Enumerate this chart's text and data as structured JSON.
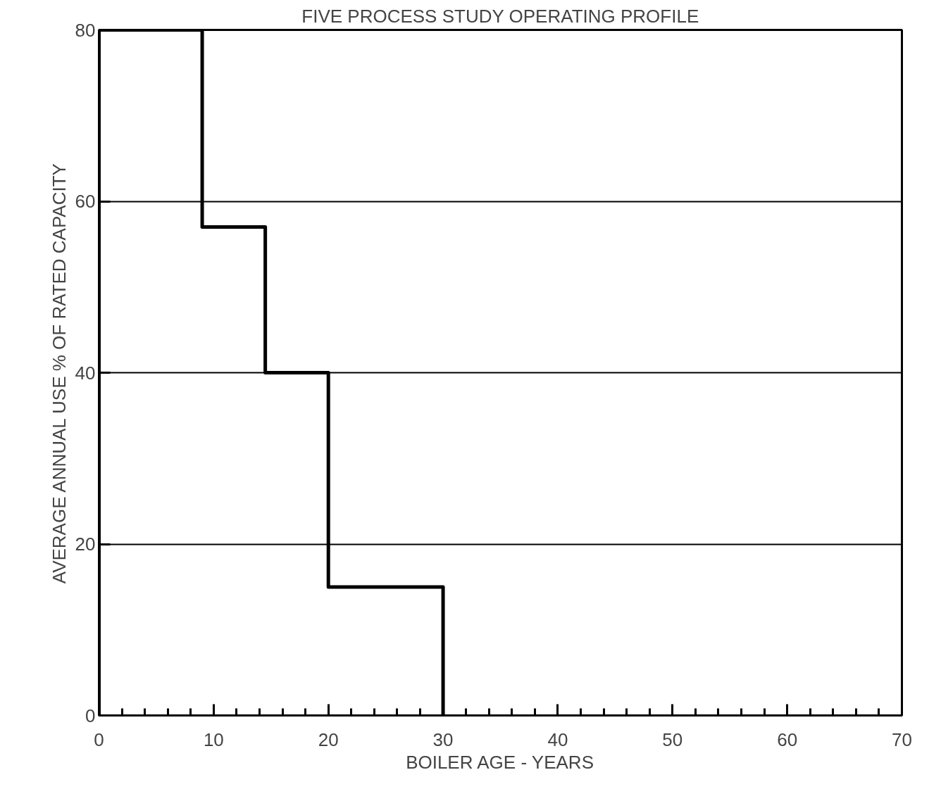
{
  "chart_data": {
    "type": "step",
    "title": "FIVE PROCESS STUDY OPERATING PROFILE",
    "xlabel": "BOILER AGE - YEARS",
    "ylabel": "AVERAGE ANNUAL USE % OF RATED CAPACITY",
    "x": [
      0,
      0,
      9,
      14.5,
      20,
      30
    ],
    "series": [
      {
        "color": "#000000",
        "values": [
          0,
          80,
          57,
          40,
          15,
          0
        ]
      }
    ],
    "xlim": [
      0,
      70
    ],
    "ylim": [
      0,
      80
    ],
    "xticks": [
      0,
      {
        "value": 2,
        "label": null
      },
      {
        "value": 4,
        "label": null
      },
      {
        "value": 6,
        "label": null
      },
      {
        "value": 8,
        "label": null
      },
      10,
      {
        "value": 12,
        "label": null
      },
      {
        "value": 14,
        "label": null
      },
      {
        "value": 16,
        "label": null
      },
      {
        "value": 18,
        "label": null
      },
      20,
      {
        "value": 22,
        "label": null
      },
      {
        "value": 24,
        "label": null
      },
      {
        "value": 26,
        "label": null
      },
      {
        "value": 28,
        "label": null
      },
      30,
      {
        "value": 32,
        "label": null
      },
      {
        "value": 34,
        "label": null
      },
      {
        "value": 36,
        "label": null
      },
      {
        "value": 38,
        "label": null
      },
      40,
      {
        "value": 42,
        "label": null
      },
      {
        "value": 44,
        "label": null
      },
      {
        "value": 46,
        "label": null
      },
      {
        "value": 48,
        "label": null
      },
      50,
      {
        "value": 52,
        "label": null
      },
      {
        "value": 54,
        "label": null
      },
      {
        "value": 56,
        "label": null
      },
      {
        "value": 58,
        "label": null
      },
      60,
      {
        "value": 62,
        "label": null
      },
      {
        "value": 64,
        "label": null
      },
      {
        "value": 66,
        "label": null
      },
      {
        "value": 68,
        "label": null
      },
      70
    ],
    "yticks": [
      0,
      20,
      40,
      60,
      80
    ],
    "grid": "y",
    "line_style": "solid"
  }
}
